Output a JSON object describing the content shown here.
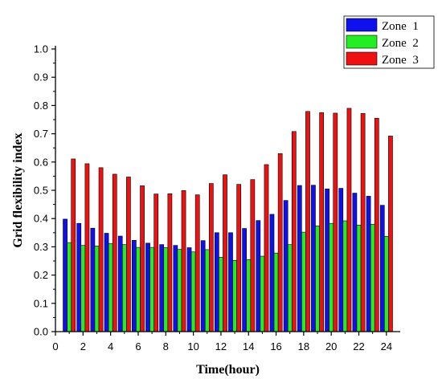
{
  "colors": {
    "zone1": "#1010ee",
    "zone2": "#22ee22",
    "zone3": "#ee1111",
    "axis": "#000000"
  },
  "chart_data": {
    "type": "bar",
    "title": "",
    "xlabel": "Time(hour)",
    "ylabel": "Grid flexibility index",
    "xlim": [
      0,
      25
    ],
    "ylim": [
      0,
      1.0
    ],
    "x_ticks": [
      0,
      2,
      4,
      6,
      8,
      10,
      12,
      14,
      16,
      18,
      20,
      22,
      24
    ],
    "y_ticks": [
      "0.0",
      "0.1",
      "0.2",
      "0.3",
      "0.4",
      "0.5",
      "0.6",
      "0.7",
      "0.8",
      "0.9",
      "1.0"
    ],
    "grid": false,
    "legend_position": "top-right",
    "categories": [
      1,
      2,
      3,
      4,
      5,
      6,
      7,
      8,
      9,
      10,
      11,
      12,
      13,
      14,
      15,
      16,
      17,
      18,
      19,
      20,
      21,
      22,
      23,
      24
    ],
    "series": [
      {
        "name": "Zone  1",
        "color": "#1010ee",
        "values": [
          0.398,
          0.383,
          0.366,
          0.348,
          0.338,
          0.323,
          0.313,
          0.308,
          0.305,
          0.297,
          0.322,
          0.35,
          0.35,
          0.365,
          0.393,
          0.415,
          0.464,
          0.517,
          0.518,
          0.505,
          0.507,
          0.49,
          0.479,
          0.447
        ]
      },
      {
        "name": "Zone  2",
        "color": "#22ee22",
        "values": [
          0.315,
          0.305,
          0.303,
          0.312,
          0.308,
          0.298,
          0.298,
          0.297,
          0.291,
          0.282,
          0.29,
          0.263,
          0.252,
          0.255,
          0.267,
          0.278,
          0.308,
          0.352,
          0.374,
          0.383,
          0.392,
          0.377,
          0.38,
          0.337
        ]
      },
      {
        "name": "Zone  3",
        "color": "#ee1111",
        "values": [
          0.611,
          0.594,
          0.58,
          0.557,
          0.547,
          0.516,
          0.487,
          0.488,
          0.499,
          0.484,
          0.524,
          0.555,
          0.521,
          0.538,
          0.591,
          0.63,
          0.708,
          0.779,
          0.775,
          0.773,
          0.79,
          0.772,
          0.755,
          0.692
        ]
      }
    ]
  }
}
